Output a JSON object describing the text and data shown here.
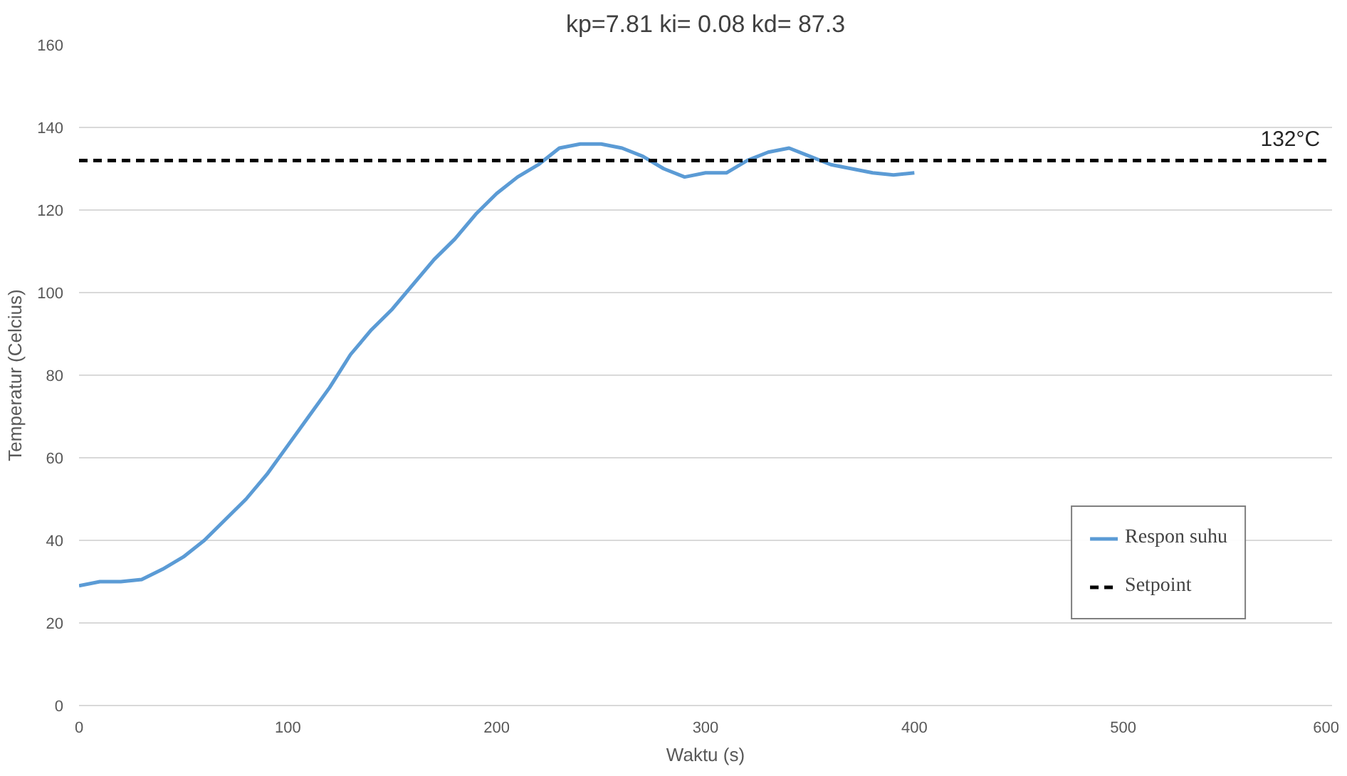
{
  "chart_data": {
    "type": "line",
    "title": "kp=7.81 ki= 0.08 kd= 87.3",
    "xlabel": "Waktu (s)",
    "ylabel": "Temperatur (Celcius)",
    "xlim": [
      0,
      600
    ],
    "xticks": [
      0,
      100,
      200,
      300,
      400,
      500,
      600
    ],
    "ylim": [
      0,
      160
    ],
    "yticks": [
      0,
      20,
      40,
      60,
      80,
      100,
      120,
      140,
      160
    ],
    "grid": "y",
    "legend": "bottom right",
    "series": [
      {
        "name": "Respon suhu",
        "color": "#5b9bd5",
        "line_style": "solid",
        "x": [
          0,
          10,
          20,
          30,
          40,
          50,
          60,
          70,
          80,
          90,
          100,
          110,
          120,
          130,
          140,
          150,
          160,
          170,
          180,
          190,
          200,
          210,
          220,
          230,
          240,
          250,
          260,
          270,
          280,
          290,
          300,
          310,
          320,
          330,
          340,
          350,
          360,
          370,
          380,
          390,
          400
        ],
        "values": [
          29,
          30,
          30,
          30.5,
          33,
          36,
          40,
          45,
          50,
          56,
          63,
          70,
          77,
          85,
          91,
          96,
          102,
          108,
          113,
          119,
          124,
          128,
          131,
          135,
          136,
          136,
          135,
          133,
          130,
          128,
          129,
          129,
          132,
          134,
          135,
          133,
          131,
          130,
          129,
          128.5,
          129
        ]
      },
      {
        "name": "Setpoint",
        "color": "#000000",
        "line_style": "dashed",
        "x": [
          0,
          600
        ],
        "values": [
          132,
          132
        ]
      }
    ],
    "annotations": [
      {
        "text": "132°C",
        "x": 580,
        "y": 132
      }
    ]
  }
}
